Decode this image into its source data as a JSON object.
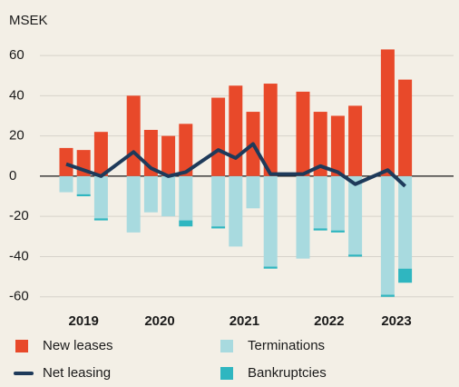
{
  "chart_data": {
    "type": "bar",
    "y_unit": "MSEK",
    "categories": [
      "2019",
      null,
      null,
      "2020",
      null,
      null,
      null,
      "2021",
      null,
      null,
      null,
      "2022",
      null,
      null,
      null,
      "2023",
      null
    ],
    "series": [
      {
        "name": "New leases",
        "color": "#e8492a",
        "kind": "bar",
        "values": [
          14,
          13,
          22,
          40,
          23,
          20,
          26,
          39,
          45,
          32,
          46,
          42,
          32,
          30,
          35,
          63,
          48
        ]
      },
      {
        "name": "Terminations",
        "color": "#a8dadf",
        "kind": "bar",
        "values": [
          -8,
          -9,
          -21,
          -28,
          -18,
          -20,
          -22,
          -25,
          -35,
          -16,
          -45,
          -41,
          -26,
          -27,
          -39,
          -59,
          -46
        ]
      },
      {
        "name": "Bankruptcies",
        "color": "#2fb6c0",
        "kind": "bar",
        "values": [
          0,
          -1,
          -1,
          0,
          0,
          0,
          -3,
          -1,
          0,
          0,
          -1,
          0,
          -1,
          -1,
          -1,
          -1,
          -7
        ]
      },
      {
        "name": "Net leasing",
        "color": "#1e3a5a",
        "kind": "line",
        "values": [
          6,
          3,
          0,
          12,
          4,
          0,
          2,
          13,
          9,
          16,
          1,
          1,
          5,
          2,
          -4,
          3,
          -5
        ]
      }
    ],
    "ylim": [
      -66,
      65
    ],
    "yticks": [
      -60,
      -40,
      -20,
      0,
      20,
      40,
      60
    ],
    "grid": true
  }
}
